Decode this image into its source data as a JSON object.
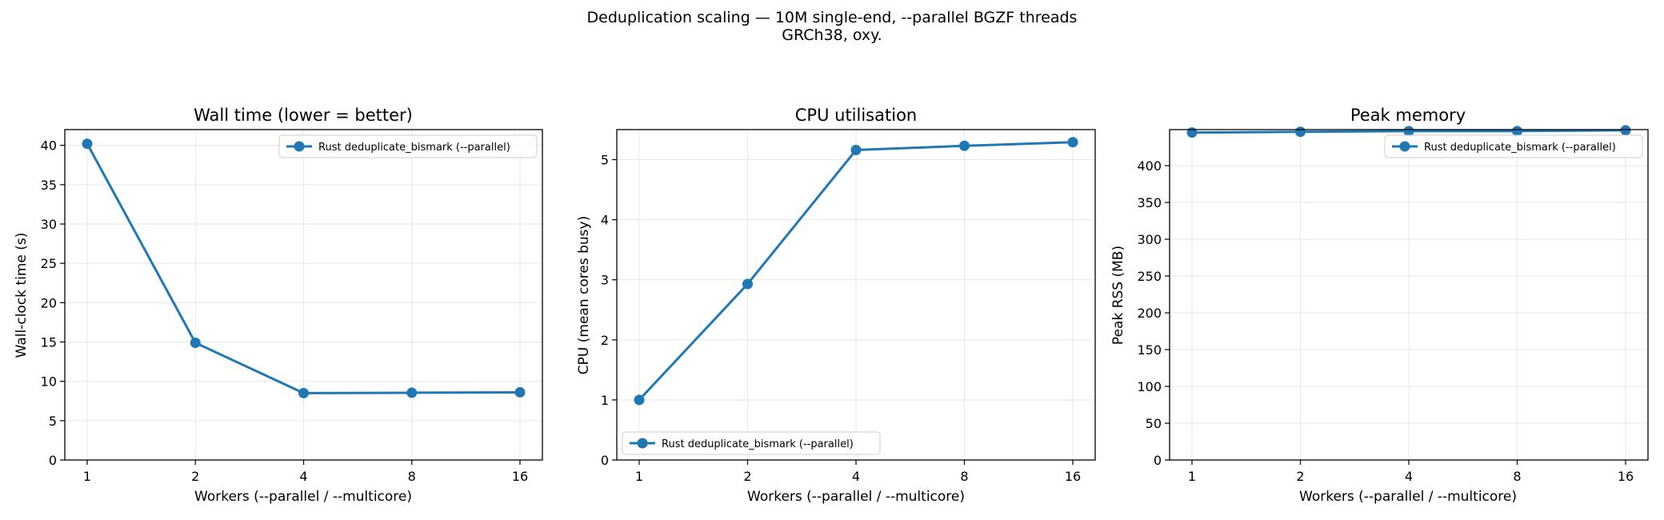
{
  "figure": {
    "suptitle_line1": "Deduplication scaling — 10M single-end, --parallel BGZF threads",
    "suptitle_line2": "GRCh38, oxy."
  },
  "colors": {
    "series": "#1f77b4"
  },
  "chart_data": [
    {
      "type": "line",
      "title": "Wall time  (lower = better)",
      "xlabel": "Workers  (--parallel / --multicore)",
      "ylabel": "Wall-clock time (s)",
      "x": [
        1,
        2,
        4,
        8,
        16
      ],
      "xscale": "categorical",
      "ylim": [
        0,
        42
      ],
      "yticks": [
        0,
        5,
        10,
        15,
        20,
        25,
        30,
        35,
        40
      ],
      "grid": true,
      "legend_loc": "top-right",
      "series": [
        {
          "name": "Rust deduplicate_bismark (--parallel)",
          "values": [
            40.2,
            14.9,
            8.5,
            8.55,
            8.6
          ]
        }
      ]
    },
    {
      "type": "line",
      "title": "CPU utilisation",
      "xlabel": "Workers  (--parallel / --multicore)",
      "ylabel": "CPU (mean cores busy)",
      "x": [
        1,
        2,
        4,
        8,
        16
      ],
      "xscale": "categorical",
      "ylim": [
        0,
        5.5
      ],
      "yticks": [
        0,
        1,
        2,
        3,
        4,
        5
      ],
      "grid": true,
      "legend_loc": "bottom-left",
      "series": [
        {
          "name": "Rust deduplicate_bismark (--parallel)",
          "values": [
            1.0,
            2.93,
            5.16,
            5.23,
            5.29
          ]
        }
      ]
    },
    {
      "type": "line",
      "title": "Peak memory",
      "xlabel": "Workers  (--parallel / --multicore)",
      "ylabel": "Peak RSS (MB)",
      "x": [
        1,
        2,
        4,
        8,
        16
      ],
      "xscale": "categorical",
      "ylim": [
        0,
        449
      ],
      "yticks": [
        0,
        50,
        100,
        150,
        200,
        250,
        300,
        350,
        400
      ],
      "grid": true,
      "legend_loc": "top-right",
      "series": [
        {
          "name": "Rust deduplicate_bismark (--parallel)",
          "values": [
            445,
            446,
            447,
            447,
            448
          ]
        }
      ]
    }
  ]
}
